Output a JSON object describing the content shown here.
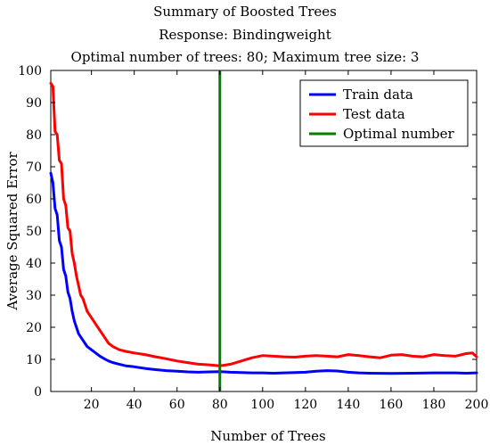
{
  "chart_data": {
    "type": "line",
    "title": "Summary of Boosted Trees",
    "subtitle": "Response: Bindingweight",
    "subtitle2": "Optimal number of trees: 80; Maximum tree size: 3",
    "xlabel": "Number of Trees",
    "ylabel": "Average Squared Error",
    "xlim": [
      1,
      200
    ],
    "ylim": [
      0,
      100
    ],
    "xticks": [
      20,
      40,
      60,
      80,
      100,
      120,
      140,
      160,
      180,
      200
    ],
    "yticks": [
      0,
      10,
      20,
      30,
      40,
      50,
      60,
      70,
      80,
      90,
      100
    ],
    "grid": false,
    "legend_position": "top-right",
    "optimal_x": 80,
    "series": [
      {
        "name": "Train data",
        "color": "#0000ff",
        "x": [
          1,
          2,
          3,
          4,
          5,
          6,
          7,
          8,
          9,
          10,
          11,
          12,
          13,
          14,
          15,
          16,
          17,
          18,
          20,
          22,
          24,
          26,
          28,
          30,
          33,
          36,
          40,
          45,
          50,
          55,
          60,
          65,
          70,
          75,
          80,
          85,
          90,
          95,
          100,
          105,
          110,
          115,
          120,
          125,
          130,
          135,
          140,
          145,
          150,
          160,
          170,
          180,
          190,
          195,
          200
        ],
        "values": [
          68,
          65,
          57,
          55,
          47,
          45,
          38,
          36,
          31,
          29,
          25,
          22,
          20,
          18,
          17,
          16,
          15,
          14,
          13,
          12,
          11,
          10.2,
          9.5,
          9,
          8.5,
          8,
          7.7,
          7.2,
          6.8,
          6.5,
          6.3,
          6.1,
          6.0,
          6.1,
          6.2,
          6.0,
          5.9,
          5.8,
          5.8,
          5.7,
          5.8,
          5.9,
          6.0,
          6.3,
          6.5,
          6.4,
          6.0,
          5.8,
          5.7,
          5.6,
          5.7,
          5.8,
          5.8,
          5.7,
          5.8
        ]
      },
      {
        "name": "Test data",
        "color": "#ff0000",
        "x": [
          1,
          2,
          3,
          4,
          5,
          6,
          7,
          8,
          9,
          10,
          11,
          12,
          13,
          14,
          15,
          16,
          17,
          18,
          20,
          22,
          24,
          26,
          28,
          30,
          33,
          36,
          40,
          45,
          50,
          55,
          60,
          65,
          70,
          75,
          80,
          85,
          90,
          95,
          100,
          105,
          110,
          115,
          120,
          125,
          130,
          135,
          140,
          145,
          150,
          155,
          160,
          165,
          170,
          175,
          180,
          185,
          190,
          195,
          198,
          200
        ],
        "values": [
          96,
          95,
          81,
          80,
          72,
          71,
          60,
          58,
          51,
          50,
          43,
          40,
          36,
          33,
          30,
          29,
          27,
          25,
          23,
          21,
          19,
          17,
          15,
          14,
          13,
          12.5,
          12,
          11.5,
          10.8,
          10.2,
          9.5,
          9.0,
          8.5,
          8.3,
          8.0,
          8.5,
          9.5,
          10.5,
          11.2,
          11.0,
          10.8,
          10.7,
          11.0,
          11.2,
          11.0,
          10.8,
          11.5,
          11.2,
          10.8,
          10.5,
          11.3,
          11.5,
          11.0,
          10.8,
          11.5,
          11.2,
          11.0,
          11.8,
          12.0,
          10.8
        ]
      }
    ],
    "legend": [
      {
        "label": "Train data",
        "color": "#0000ff"
      },
      {
        "label": "Test data",
        "color": "#ff0000"
      },
      {
        "label": "Optimal number",
        "color": "#007f00"
      }
    ]
  }
}
